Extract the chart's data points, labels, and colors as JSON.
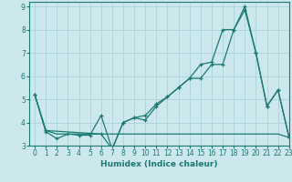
{
  "xlabel": "Humidex (Indice chaleur)",
  "xlim": [
    -0.5,
    23
  ],
  "ylim": [
    3,
    9.2
  ],
  "yticks": [
    3,
    4,
    5,
    6,
    7,
    8,
    9
  ],
  "xticks": [
    0,
    1,
    2,
    3,
    4,
    5,
    6,
    7,
    8,
    9,
    10,
    11,
    12,
    13,
    14,
    15,
    16,
    17,
    18,
    19,
    20,
    21,
    22,
    23
  ],
  "bg_color": "#cce8ec",
  "line_color": "#1a7a72",
  "grid_color": "#aad4d8",
  "line1_x": [
    0,
    1,
    2,
    3,
    4,
    5,
    6,
    7,
    8,
    9,
    10,
    11,
    12,
    13,
    14,
    15,
    16,
    17,
    18,
    19,
    20,
    21,
    22,
    23
  ],
  "line1_y": [
    5.2,
    3.6,
    3.3,
    3.5,
    3.45,
    3.45,
    4.3,
    2.85,
    4.0,
    4.2,
    4.1,
    4.7,
    5.1,
    5.5,
    5.9,
    5.9,
    6.5,
    6.5,
    8.0,
    8.85,
    7.0,
    4.7,
    5.4,
    3.35
  ],
  "line2_x": [
    0,
    1,
    2,
    3,
    4,
    5,
    6,
    7,
    8,
    9,
    10,
    11,
    12,
    13,
    14,
    15,
    16,
    17,
    18,
    19,
    20,
    21,
    22,
    23
  ],
  "line2_y": [
    5.2,
    3.65,
    3.5,
    3.5,
    3.5,
    3.5,
    3.5,
    3.5,
    3.5,
    3.5,
    3.5,
    3.5,
    3.5,
    3.5,
    3.5,
    3.5,
    3.5,
    3.5,
    3.5,
    3.5,
    3.5,
    3.5,
    3.5,
    3.35
  ],
  "line3_x": [
    0,
    1,
    6,
    7,
    8,
    9,
    10,
    11,
    12,
    13,
    14,
    15,
    16,
    17,
    18,
    19,
    20,
    21,
    22,
    23
  ],
  "line3_y": [
    5.2,
    3.65,
    3.5,
    2.85,
    4.0,
    4.2,
    4.3,
    4.8,
    5.1,
    5.5,
    5.9,
    6.5,
    6.6,
    8.0,
    8.0,
    9.0,
    7.0,
    4.7,
    5.4,
    3.35
  ]
}
